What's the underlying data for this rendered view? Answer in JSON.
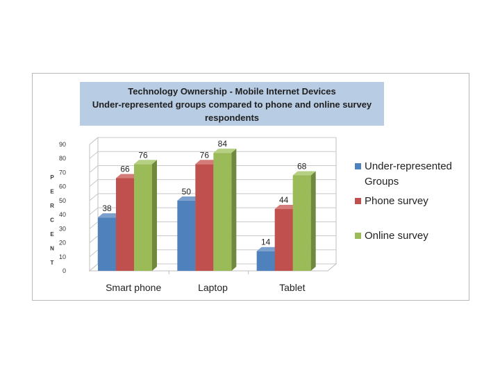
{
  "chart_data": {
    "type": "bar",
    "title_lines": [
      "Technology Ownership - Mobile Internet Devices",
      "Under-represented groups compared to phone and online survey",
      "respondents"
    ],
    "ylabel": "PERCENT",
    "ylabel_letters": [
      "P",
      "E",
      "R",
      "C",
      "E",
      "N",
      "T"
    ],
    "xlabel": "",
    "ylim": [
      0,
      90
    ],
    "yticks": [
      "0",
      "10",
      "20",
      "30",
      "40",
      "50",
      "60",
      "70",
      "80",
      "90"
    ],
    "categories": [
      "Smart phone",
      "Laptop",
      "Tablet"
    ],
    "series": [
      {
        "name": "Under-represented Groups",
        "legend_lines": [
          "Under-represented",
          "Groups"
        ],
        "values": [
          38,
          50,
          14
        ],
        "color": "#4f81bd",
        "side": "#385d8a",
        "top": "#7ba0cd"
      },
      {
        "name": "Phone survey",
        "legend_lines": [
          "Phone survey"
        ],
        "values": [
          66,
          76,
          44
        ],
        "color": "#c0504d",
        "side": "#8c3836",
        "top": "#d47c7a"
      },
      {
        "name": "Online survey",
        "legend_lines": [
          "Online survey"
        ],
        "values": [
          76,
          84,
          68
        ],
        "color": "#9bbb59",
        "side": "#71893f",
        "top": "#b5cf83"
      }
    ],
    "grid": true,
    "legend_position": "right",
    "title_bg": "#b8cce4"
  }
}
